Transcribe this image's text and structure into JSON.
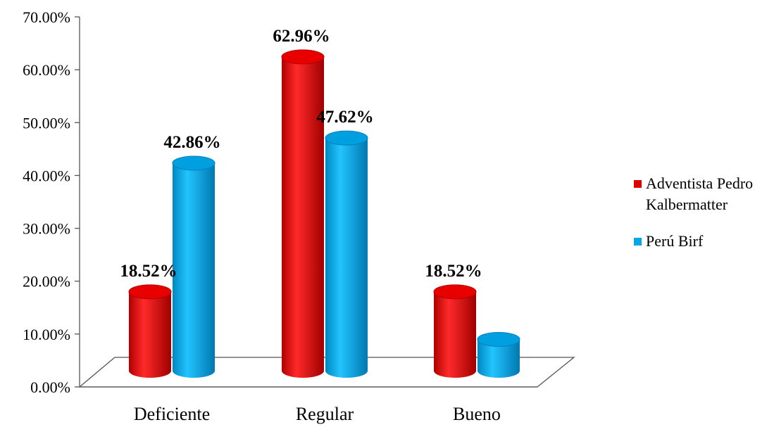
{
  "chart_data": {
    "type": "bar",
    "categories": [
      "Deficiente",
      "Regular",
      "Bueno"
    ],
    "series": [
      {
        "name": "Adventista Pedro Kalbermatter",
        "color": "#e00000",
        "values": [
          18.52,
          62.96,
          18.52
        ],
        "labels": [
          "18.52%",
          "62.96%",
          "18.52%"
        ]
      },
      {
        "name": "Perú Birf",
        "color": "#00a8e8",
        "values": [
          42.86,
          47.62,
          9.52
        ],
        "labels": [
          "42.86%",
          "47.62%",
          ""
        ]
      }
    ],
    "ylim": [
      0,
      70
    ],
    "yticks": [
      "0.00%",
      "10.00%",
      "20.00%",
      "30.00%",
      "40.00%",
      "50.00%",
      "60.00%",
      "70.00%"
    ],
    "title": "",
    "xlabel": "",
    "ylabel": "",
    "legend_position": "right"
  }
}
